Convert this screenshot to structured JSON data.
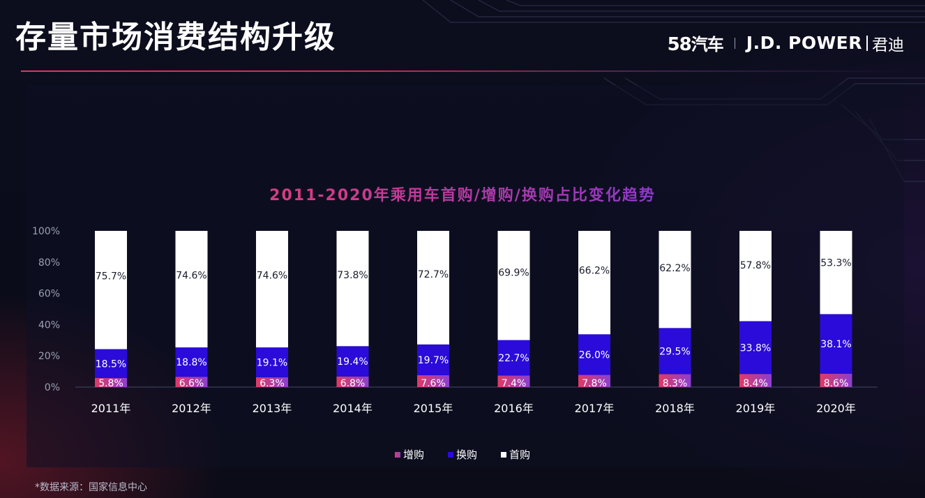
{
  "header": {
    "title": "存量市场消费结构升级",
    "brand_58_num": "58",
    "brand_58_text": "汽车",
    "brand_jd": "J.D. POWER",
    "brand_jd_cn": "君迪"
  },
  "colors": {
    "zengou": "#e03a67",
    "zengou_gradient_end": "#8a3fd0",
    "huangou": "#2a0bd9",
    "shougou": "#ffffff",
    "axis_text": "#9aa0b4",
    "accent": "#e3345f"
  },
  "chart_data": {
    "type": "bar",
    "stacked": true,
    "title": "2011-2020年乘用车首购/增购/换购占比变化趋势",
    "categories": [
      "2011年",
      "2012年",
      "2013年",
      "2014年",
      "2015年",
      "2016年",
      "2017年",
      "2018年",
      "2019年",
      "2020年"
    ],
    "series": [
      {
        "name": "增购",
        "values": [
          5.8,
          6.6,
          6.3,
          6.8,
          7.6,
          7.4,
          7.8,
          8.3,
          8.4,
          8.6
        ]
      },
      {
        "name": "换购",
        "values": [
          18.5,
          18.8,
          19.1,
          19.4,
          19.7,
          22.7,
          26.0,
          29.5,
          33.8,
          38.1
        ]
      },
      {
        "name": "首购",
        "values": [
          75.7,
          74.6,
          74.6,
          73.8,
          72.7,
          69.9,
          66.2,
          62.2,
          57.8,
          53.3
        ]
      }
    ],
    "yticks": [
      "0%",
      "20%",
      "40%",
      "60%",
      "80%",
      "100%"
    ],
    "ylim": [
      0,
      100
    ],
    "ylabel": "",
    "xlabel": "",
    "legend_position": "bottom",
    "grid": false
  },
  "footer": {
    "source": "*数据来源：国家信息中心"
  }
}
